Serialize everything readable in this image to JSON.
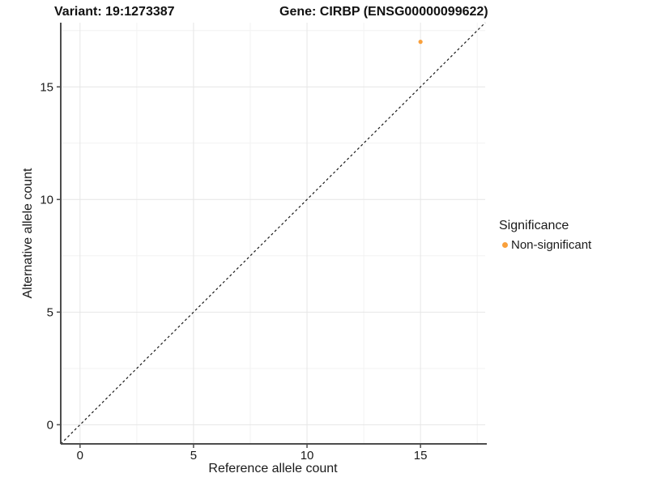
{
  "header": {
    "title_left": "Variant: 19:1273387",
    "title_right": "Gene: CIRBP (ENSG00000099622)"
  },
  "colors": {
    "background": "#ffffff",
    "text": "#1a1a1a",
    "axis": "#4d4d4d",
    "grid_major": "#e6e6e6",
    "grid_minor": "#f2f2f2",
    "accent_orange": "#F9A03C"
  },
  "chart_data": {
    "type": "scatter",
    "xlabel": "Reference allele count",
    "ylabel": "Alternative allele count",
    "xlim": [
      -0.85,
      17.85
    ],
    "ylim": [
      -0.85,
      17.85
    ],
    "x_ticks": {
      "values": [
        0,
        5,
        10,
        15
      ],
      "labels": [
        "0",
        "5",
        "10",
        "15"
      ]
    },
    "y_ticks": {
      "values": [
        0,
        5,
        10,
        15
      ],
      "labels": [
        "0",
        "5",
        "10",
        "15"
      ]
    },
    "x_minor": [
      2.5,
      7.5,
      12.5,
      17.5
    ],
    "y_minor": [
      2.5,
      7.5,
      12.5,
      17.5
    ],
    "grid": "major+minor, light gray on white",
    "reference_line": {
      "type": "identity",
      "slope": 1,
      "intercept": 0,
      "style": "dashed",
      "color": "#1a1a1a"
    },
    "series": [
      {
        "name": "Non-significant",
        "color": "#F9A03C",
        "points": [
          [
            15,
            17
          ]
        ]
      }
    ],
    "legend": {
      "title": "Significance",
      "position": "right",
      "items": [
        {
          "label": "Non-significant",
          "color": "#F9A03C"
        }
      ]
    }
  }
}
